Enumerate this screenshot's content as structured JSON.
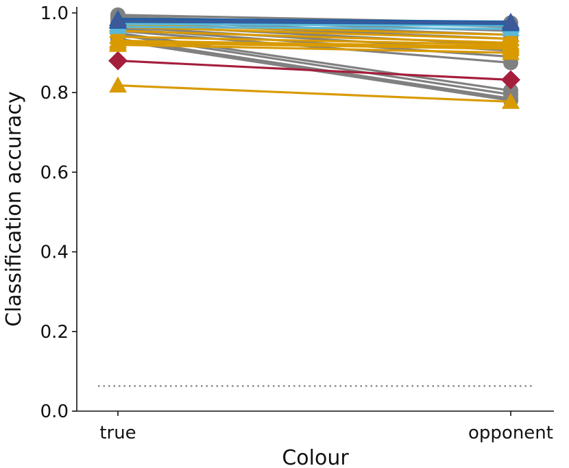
{
  "chart_data": {
    "type": "line",
    "xlabel": "Colour",
    "ylabel": "Classification accuracy",
    "categories": [
      "true",
      "opponent"
    ],
    "ylim": [
      0.0,
      1.0
    ],
    "yticks": [
      "0.0",
      "0.2",
      "0.4",
      "0.6",
      "0.8",
      "1.0"
    ],
    "grid": false,
    "chance_level": 0.063,
    "series": [
      {
        "values": [
          0.995,
          0.975
        ],
        "color": "#808080",
        "marker": "circle"
      },
      {
        "values": [
          0.99,
          0.965
        ],
        "color": "#808080",
        "marker": "circle"
      },
      {
        "values": [
          0.985,
          0.955
        ],
        "color": "#808080",
        "marker": "circle"
      },
      {
        "values": [
          0.98,
          0.945
        ],
        "color": "#808080",
        "marker": "circle"
      },
      {
        "values": [
          0.975,
          0.935
        ],
        "color": "#808080",
        "marker": "circle"
      },
      {
        "values": [
          0.97,
          0.92
        ],
        "color": "#808080",
        "marker": "circle"
      },
      {
        "values": [
          0.965,
          0.905
        ],
        "color": "#808080",
        "marker": "circle"
      },
      {
        "values": [
          0.96,
          0.89
        ],
        "color": "#808080",
        "marker": "circle"
      },
      {
        "values": [
          0.955,
          0.875
        ],
        "color": "#808080",
        "marker": "circle"
      },
      {
        "values": [
          0.95,
          0.805
        ],
        "color": "#808080",
        "marker": "circle"
      },
      {
        "values": [
          0.945,
          0.795
        ],
        "color": "#808080",
        "marker": "circle"
      },
      {
        "values": [
          0.935,
          0.785
        ],
        "color": "#808080",
        "marker": "circle"
      },
      {
        "values": [
          0.93,
          0.78
        ],
        "color": "#808080",
        "marker": "circle"
      },
      {
        "values": [
          0.88,
          0.832
        ],
        "color": "#a51e3c",
        "marker": "diamond"
      },
      {
        "values": [
          0.97,
          0.945
        ],
        "color": "#d99a00",
        "marker": "triangle"
      },
      {
        "values": [
          0.965,
          0.935
        ],
        "color": "#d99a00",
        "marker": "triangle"
      },
      {
        "values": [
          0.955,
          0.925
        ],
        "color": "#d99a00",
        "marker": "triangle"
      },
      {
        "values": [
          0.94,
          0.92
        ],
        "color": "#d99a00",
        "marker": "triangle"
      },
      {
        "values": [
          0.93,
          0.915
        ],
        "color": "#d99a00",
        "marker": "triangle"
      },
      {
        "values": [
          0.925,
          0.91
        ],
        "color": "#d99a00",
        "marker": "triangle"
      },
      {
        "values": [
          0.92,
          0.9
        ],
        "color": "#d99a00",
        "marker": "triangle"
      },
      {
        "values": [
          0.818,
          0.777
        ],
        "color": "#d99a00",
        "marker": "triangle"
      },
      {
        "values": [
          0.972,
          0.968
        ],
        "color": "#5bb8d8",
        "marker": "triangle"
      },
      {
        "values": [
          0.965,
          0.96
        ],
        "color": "#5bb8d8",
        "marker": "triangle"
      },
      {
        "values": [
          0.985,
          0.978
        ],
        "color": "#1f5fa6",
        "marker": "triangle"
      },
      {
        "values": [
          0.978,
          0.972
        ],
        "color": "#1f5fa6",
        "marker": "triangle"
      },
      {
        "values": [
          0.98,
          0.975
        ],
        "color": "#3c5a9a",
        "marker": "triangle"
      }
    ]
  }
}
